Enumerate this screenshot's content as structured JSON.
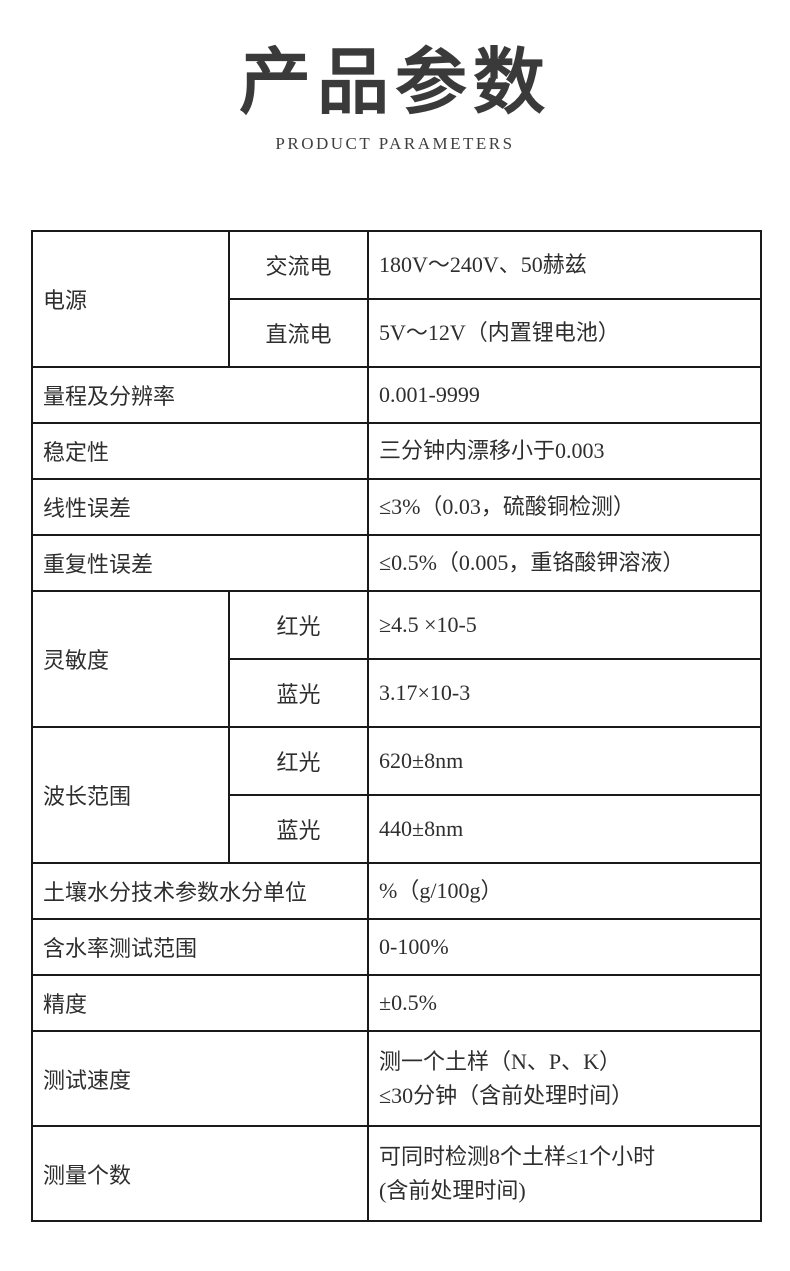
{
  "header": {
    "title": "产品参数",
    "subtitle": "PRODUCT PARAMETERS"
  },
  "colors": {
    "text": "#2e2e2e",
    "border": "#1a1a1a",
    "background": "#ffffff"
  },
  "table": {
    "groups": [
      {
        "label": "电源",
        "items": [
          {
            "sub": "交流电",
            "value": "180V～240V、50赫兹"
          },
          {
            "sub": "直流电",
            "value": "5V～12V（内置锂电池）"
          }
        ]
      },
      {
        "label": "量程及分辨率",
        "value": "0.001-9999"
      },
      {
        "label": "稳定性",
        "value": "三分钟内漂移小于0.003"
      },
      {
        "label": "线性误差",
        "value": "≤3%（0.03，硫酸铜检测）"
      },
      {
        "label": "重复性误差",
        "value": "≤0.5%（0.005，重铬酸钾溶液）"
      },
      {
        "label": "灵敏度",
        "items": [
          {
            "sub": "红光",
            "value": "≥4.5 ×10-5"
          },
          {
            "sub": "蓝光",
            "value": "3.17×10-3"
          }
        ]
      },
      {
        "label": "波长范围",
        "items": [
          {
            "sub": "红光",
            "value": "620±8nm"
          },
          {
            "sub": "蓝光",
            "value": "440±8nm"
          }
        ]
      },
      {
        "label": "土壤水分技术参数水分单位",
        "value": "%（g/100g）"
      },
      {
        "label": "含水率测试范围",
        "value": "0-100%"
      },
      {
        "label": "精度",
        "value": "±0.5%"
      },
      {
        "label": "测试速度",
        "value": [
          "测一个土样（N、P、K）",
          "≤30分钟（含前处理时间）"
        ]
      },
      {
        "label": "测量个数",
        "value": [
          "可同时检测8个土样≤1个小时",
          "(含前处理时间)"
        ]
      }
    ]
  }
}
